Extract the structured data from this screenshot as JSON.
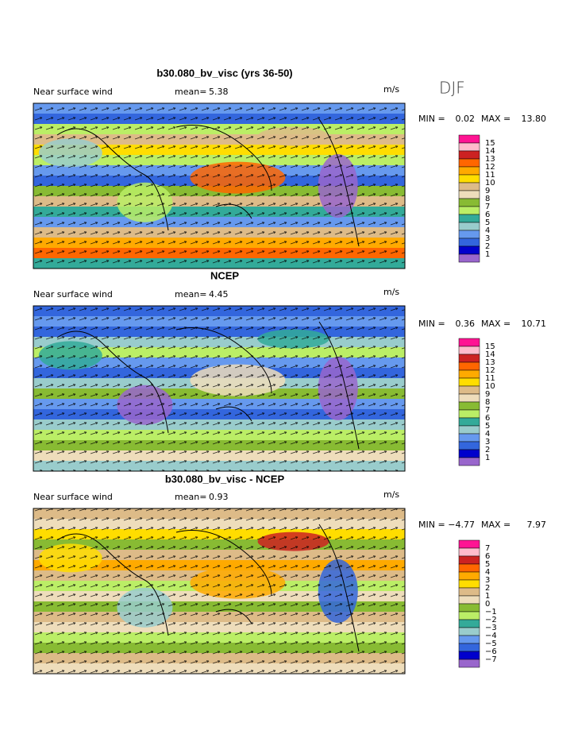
{
  "season": "DJF",
  "panels": [
    {
      "title": "b30.080_bv_visc (yrs 36-50)",
      "label": "Near surface wind",
      "mean_label": "mean=",
      "mean": "5.38",
      "units": "m/s",
      "min_label": "MIN =",
      "min": "0.02",
      "max_label": "MAX =",
      "max": "13.80",
      "colorbar": {
        "labels": [
          "15",
          "14",
          "13",
          "12",
          "11",
          "10",
          "9",
          "8",
          "7",
          "6",
          "5",
          "4",
          "3",
          "2",
          "1"
        ]
      }
    },
    {
      "title": "NCEP",
      "label": "Near surface wind",
      "mean_label": "mean=",
      "mean": "4.45",
      "units": "m/s",
      "min_label": "MIN =",
      "min": "0.36",
      "max_label": "MAX =",
      "max": "10.71",
      "colorbar": {
        "labels": [
          "15",
          "14",
          "13",
          "12",
          "11",
          "10",
          "9",
          "8",
          "7",
          "6",
          "5",
          "4",
          "3",
          "2",
          "1"
        ]
      }
    },
    {
      "title": "b30.080_bv_visc - NCEP",
      "label": "Near surface wind",
      "mean_label": "mean=",
      "mean": "0.93",
      "units": "m/s",
      "min_label": "MIN =",
      "min": "−4.77",
      "max_label": "MAX =",
      "max": "7.97",
      "colorbar": {
        "labels": [
          "7",
          "6",
          "5",
          "4",
          "3",
          "2",
          "1",
          "0",
          "−1",
          "−2",
          "−3",
          "−4",
          "−5",
          "−6",
          "−7"
        ]
      }
    }
  ]
}
